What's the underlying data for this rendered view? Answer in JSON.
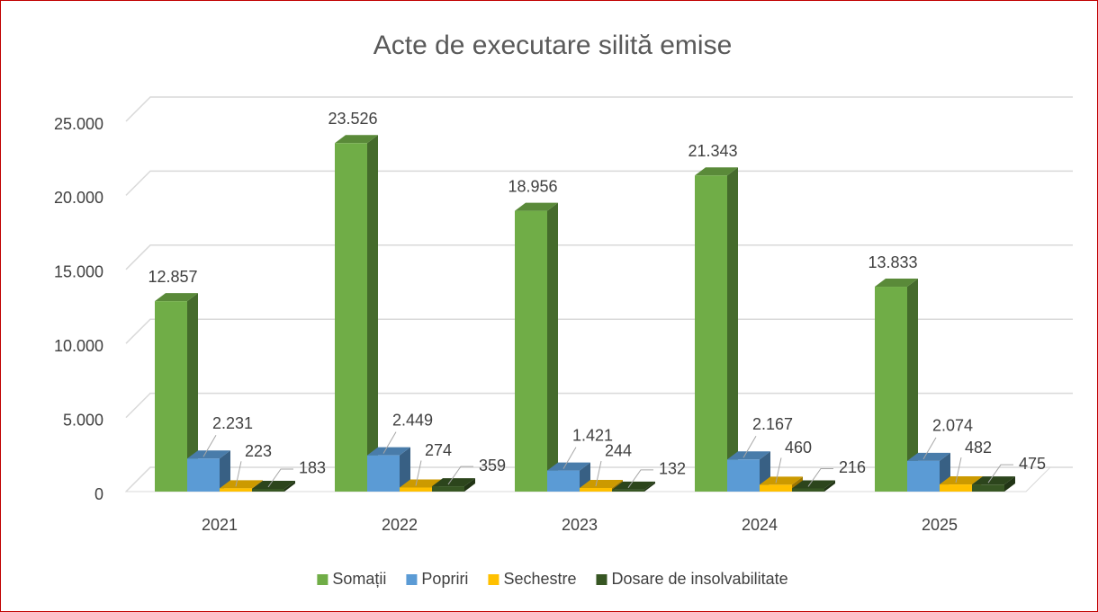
{
  "chart_data": {
    "type": "bar3d",
    "title": "Acte de executare silită emise",
    "categories": [
      "2021",
      "2022",
      "2023",
      "2024",
      "2025"
    ],
    "series": [
      {
        "name": "Somații",
        "color": "#70ad47",
        "values": [
          12857,
          23526,
          18956,
          21343,
          13833
        ],
        "value_labels": [
          "12.857",
          "23.526",
          "18.956",
          "21.343",
          "13.833"
        ]
      },
      {
        "name": "Popriri",
        "color": "#5b9bd5",
        "values": [
          2231,
          2449,
          1421,
          2167,
          2074
        ],
        "value_labels": [
          "2.231",
          "2.449",
          "1.421",
          "2.167",
          "2.074"
        ]
      },
      {
        "name": "Sechestre",
        "color": "#ffc000",
        "values": [
          223,
          274,
          244,
          460,
          482
        ],
        "value_labels": [
          "223",
          "274",
          "244",
          "460",
          "482"
        ]
      },
      {
        "name": "Dosare de insolvabilitate",
        "color": "#375623",
        "values": [
          183,
          359,
          132,
          216,
          475
        ],
        "value_labels": [
          "183",
          "359",
          "132",
          "216",
          "475"
        ]
      }
    ],
    "ylim": [
      0,
      25000
    ],
    "yticks": [
      0,
      {
        "value": 5000,
        "label": "5.000"
      },
      {
        "value": 10000,
        "label": "10.000"
      },
      {
        "value": 15000,
        "label": "15.000"
      },
      {
        "value": 20000,
        "label": "20.000"
      },
      {
        "value": 25000,
        "label": "25.000"
      }
    ],
    "grid": true,
    "legend": "bottom"
  }
}
